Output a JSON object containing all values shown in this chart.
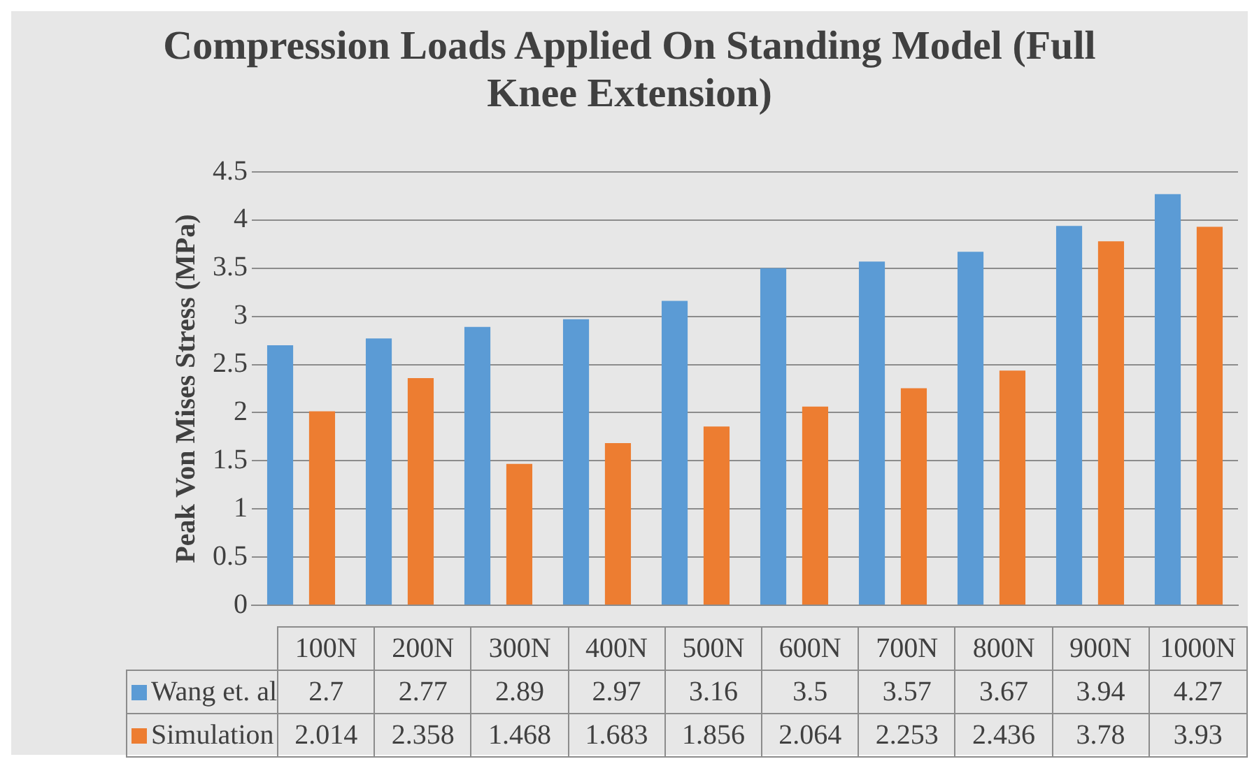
{
  "chart_data": {
    "type": "bar",
    "title": "Compression Loads Applied On Standing Model (Full Knee Extension)",
    "ylabel": "Peak Von Mises Stress (MPa)",
    "categories": [
      "100N",
      "200N",
      "300N",
      "400N",
      "500N",
      "600N",
      "700N",
      "800N",
      "900N",
      "1000N"
    ],
    "series": [
      {
        "name": "Wang et. al",
        "color": "#5b9bd5",
        "values": [
          2.7,
          2.77,
          2.89,
          2.97,
          3.16,
          3.5,
          3.57,
          3.67,
          3.94,
          4.27
        ]
      },
      {
        "name": "Simulation",
        "color": "#ed7d31",
        "values": [
          2.014,
          2.358,
          1.468,
          1.683,
          1.856,
          2.064,
          2.253,
          2.436,
          3.78,
          3.93
        ]
      }
    ],
    "ylim": [
      0,
      4.5
    ],
    "yticks": [
      0,
      0.5,
      1,
      1.5,
      2,
      2.5,
      3,
      3.5,
      4,
      4.5
    ],
    "grid": "y",
    "data_labels": true,
    "legend": "bottom"
  }
}
